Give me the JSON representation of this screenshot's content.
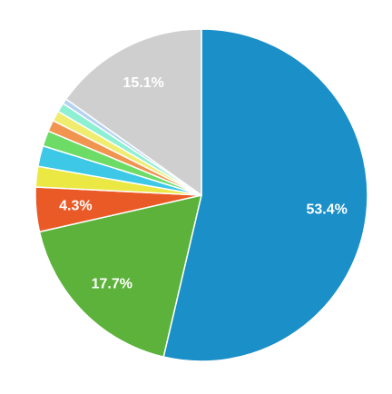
{
  "chart_data": {
    "type": "pie",
    "start_angle_deg": 0,
    "direction": "clockwise",
    "slices": [
      {
        "value": 53.4,
        "color": "#1a8fc8",
        "label": "53.4%"
      },
      {
        "value": 17.7,
        "color": "#5cb23a",
        "label": "17.7%"
      },
      {
        "value": 4.3,
        "color": "#ea5a27",
        "label": "4.3%"
      },
      {
        "value": 2.0,
        "color": "#ebe843",
        "label": ""
      },
      {
        "value": 2.0,
        "color": "#3cc8e6",
        "label": ""
      },
      {
        "value": 1.5,
        "color": "#6cdc66",
        "label": ""
      },
      {
        "value": 1.1,
        "color": "#f09450",
        "label": ""
      },
      {
        "value": 1.0,
        "color": "#f0ec6e",
        "label": ""
      },
      {
        "value": 0.9,
        "color": "#8ef0d2",
        "label": ""
      },
      {
        "value": 0.5,
        "color": "#b4d2f0",
        "label": ""
      },
      {
        "value": 15.1,
        "color": "#cfcfcf",
        "label": "15.1%"
      }
    ]
  }
}
